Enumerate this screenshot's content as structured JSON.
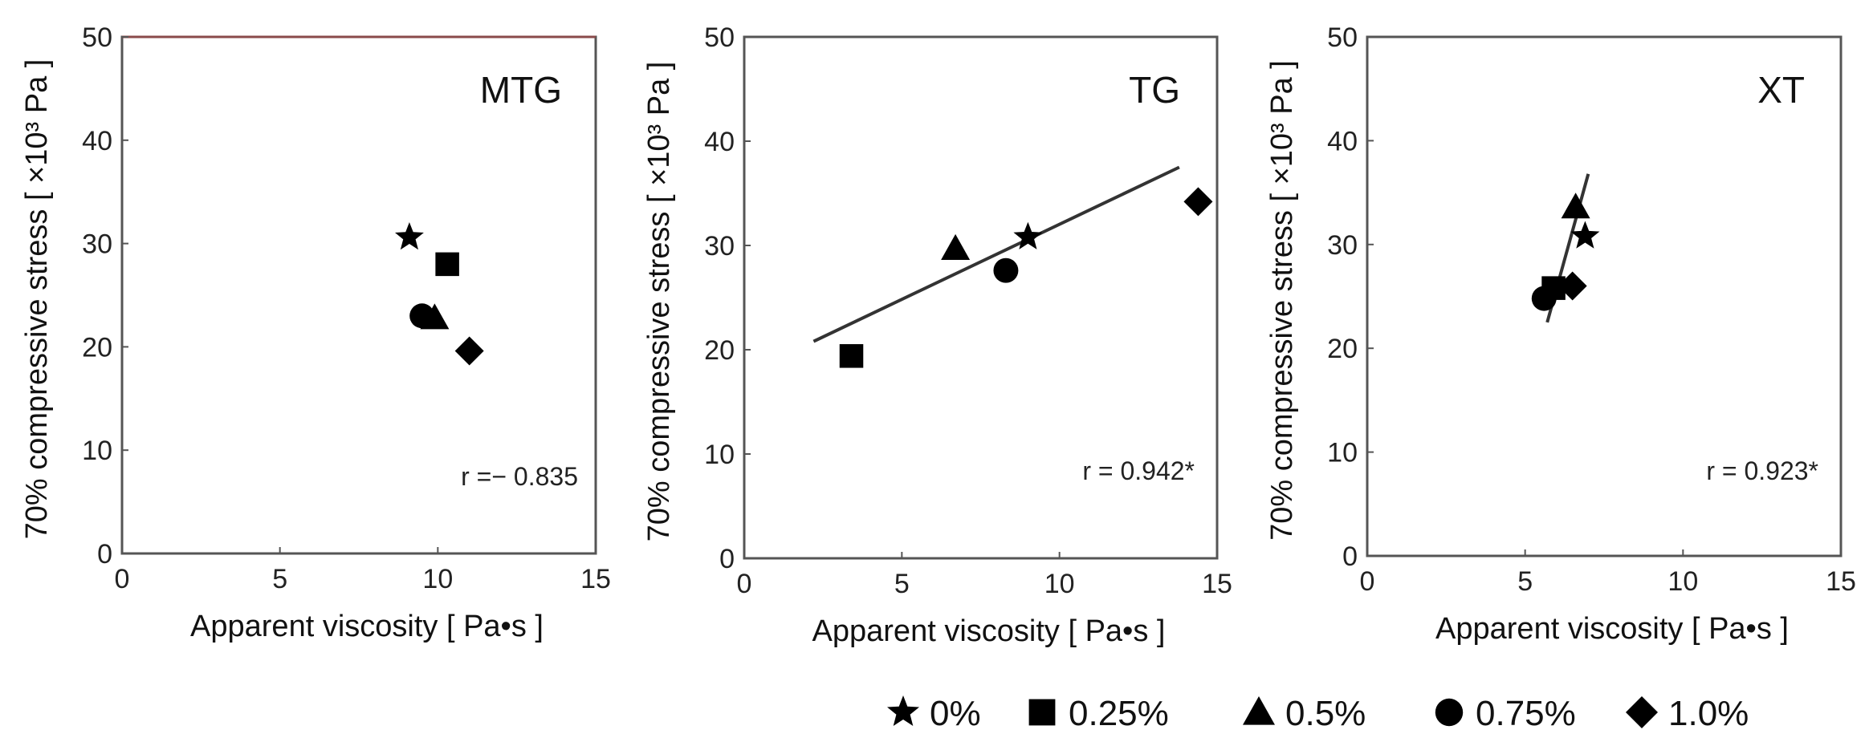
{
  "chart_data": [
    {
      "type": "scatter",
      "title": "MTG",
      "xlabel": "Apparent viscosity [ Pa•s ]",
      "ylabel": "70% compressive stress [ ×10³ Pa ]",
      "xlim": [
        0,
        15
      ],
      "ylim": [
        0,
        50
      ],
      "xticks": [
        0,
        5,
        10,
        15
      ],
      "yticks": [
        0,
        10,
        20,
        30,
        40,
        50
      ],
      "points": [
        {
          "series": "0%",
          "x": 9.1,
          "y": 30.6
        },
        {
          "series": "0.25%",
          "x": 10.3,
          "y": 28.0
        },
        {
          "series": "0.5%",
          "x": 9.9,
          "y": 22.8
        },
        {
          "series": "0.75%",
          "x": 9.5,
          "y": 23.0
        },
        {
          "series": "1.0%",
          "x": 11.0,
          "y": 19.6
        }
      ],
      "fit_line": null,
      "annotation": "r =− 0.835"
    },
    {
      "type": "scatter",
      "title": "TG",
      "xlabel": "Apparent viscosity [ Pa•s ]",
      "ylabel": "70% compressive stress [ ×10³ Pa ]",
      "xlim": [
        0,
        15
      ],
      "ylim": [
        0,
        50
      ],
      "xticks": [
        0,
        5,
        10,
        15
      ],
      "yticks": [
        0,
        10,
        20,
        30,
        40,
        50
      ],
      "points": [
        {
          "series": "0%",
          "x": 9.0,
          "y": 30.8
        },
        {
          "series": "0.25%",
          "x": 3.4,
          "y": 19.4
        },
        {
          "series": "0.5%",
          "x": 6.7,
          "y": 29.7
        },
        {
          "series": "0.75%",
          "x": 8.3,
          "y": 27.6
        },
        {
          "series": "1.0%",
          "x": 14.4,
          "y": 34.2
        }
      ],
      "fit_line": {
        "x": [
          2.2,
          13.8
        ],
        "y": [
          20.8,
          37.5
        ]
      },
      "annotation": "r = 0.942*"
    },
    {
      "type": "scatter",
      "title": "XT",
      "xlabel": "Apparent viscosity [ Pa•s ]",
      "ylabel": "70% compressive stress [ ×10³ Pa ]",
      "xlim": [
        0,
        15
      ],
      "ylim": [
        0,
        50
      ],
      "xticks": [
        0,
        5,
        10,
        15
      ],
      "yticks": [
        0,
        10,
        20,
        30,
        40,
        50
      ],
      "points": [
        {
          "series": "0%",
          "x": 6.9,
          "y": 30.8
        },
        {
          "series": "0.25%",
          "x": 5.9,
          "y": 25.8
        },
        {
          "series": "0.5%",
          "x": 6.6,
          "y": 33.6
        },
        {
          "series": "0.75%",
          "x": 5.6,
          "y": 24.8
        },
        {
          "series": "1.0%",
          "x": 6.5,
          "y": 26.0
        }
      ],
      "fit_line": {
        "x": [
          5.7,
          7.0
        ],
        "y": [
          22.5,
          36.8
        ]
      },
      "annotation": "r = 0.923*"
    }
  ],
  "legend": {
    "items": [
      {
        "marker": "star",
        "label": "0%"
      },
      {
        "marker": "square",
        "label": "0.25%"
      },
      {
        "marker": "triangle",
        "label": "0.5%"
      },
      {
        "marker": "circle",
        "label": "0.75%"
      },
      {
        "marker": "diamond",
        "label": "1.0%"
      }
    ]
  },
  "colors": {
    "marker": "#000000",
    "axis": "#555555",
    "fit_line": "#333333"
  }
}
